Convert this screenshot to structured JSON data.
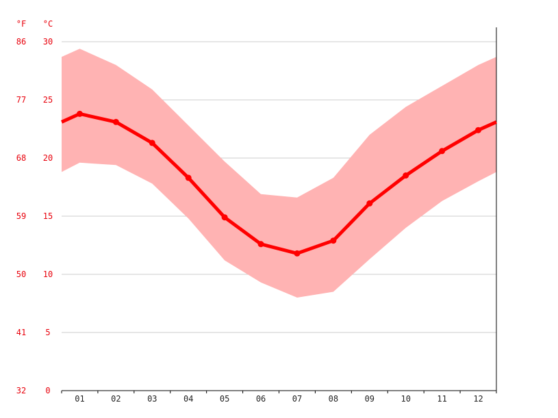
{
  "chart_data": {
    "type": "area",
    "x_categories": [
      "01",
      "02",
      "03",
      "04",
      "05",
      "06",
      "07",
      "08",
      "09",
      "10",
      "11",
      "12"
    ],
    "left_unit": "°F",
    "right_unit": "°C",
    "y_ticks_c": [
      0,
      5,
      10,
      15,
      20,
      25,
      30
    ],
    "y_ticks_f": [
      32,
      41,
      50,
      59,
      68,
      77,
      86
    ],
    "ylim": [
      0,
      30
    ],
    "grid": true,
    "series": [
      {
        "values": [
          23.8,
          23.1,
          21.3,
          18.3,
          14.9,
          12.6,
          11.8,
          12.9,
          16.1,
          18.5,
          20.6,
          22.4
        ]
      }
    ],
    "band_high": [
      29.4,
      28.0,
      25.9,
      22.8,
      19.7,
      16.9,
      16.6,
      18.3,
      22.0,
      24.4,
      26.2,
      28.0
    ],
    "band_low": [
      19.6,
      19.4,
      17.8,
      14.8,
      11.2,
      9.3,
      8.0,
      8.5,
      11.3,
      14.0,
      16.3,
      18.0
    ],
    "colors": {
      "line": "#ff0000",
      "band": "#ffb3b3",
      "grid": "#cccccc",
      "tick_text": "#e8000b"
    }
  }
}
